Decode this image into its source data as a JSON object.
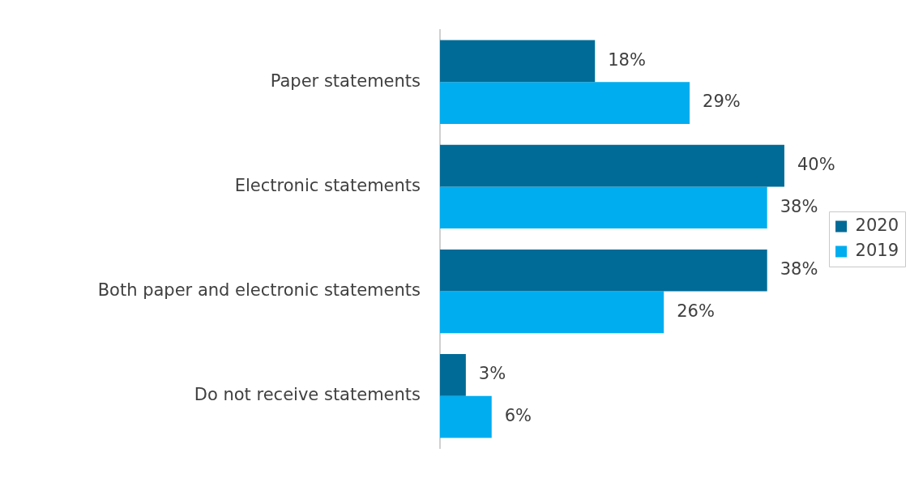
{
  "chart_data": {
    "type": "bar",
    "orientation": "horizontal",
    "categories": [
      "Paper statements",
      "Electronic statements",
      "Both paper and electronic statements",
      "Do not receive statements"
    ],
    "series": [
      {
        "name": "2020",
        "color": "#006b96",
        "values": [
          18,
          40,
          38,
          3
        ],
        "value_labels": [
          "18%",
          "40%",
          "38%",
          "3%"
        ]
      },
      {
        "name": "2019",
        "color": "#00adef",
        "values": [
          29,
          38,
          26,
          6
        ],
        "value_labels": [
          "29%",
          "38%",
          "26%",
          "6%"
        ]
      }
    ],
    "legend": "right"
  }
}
